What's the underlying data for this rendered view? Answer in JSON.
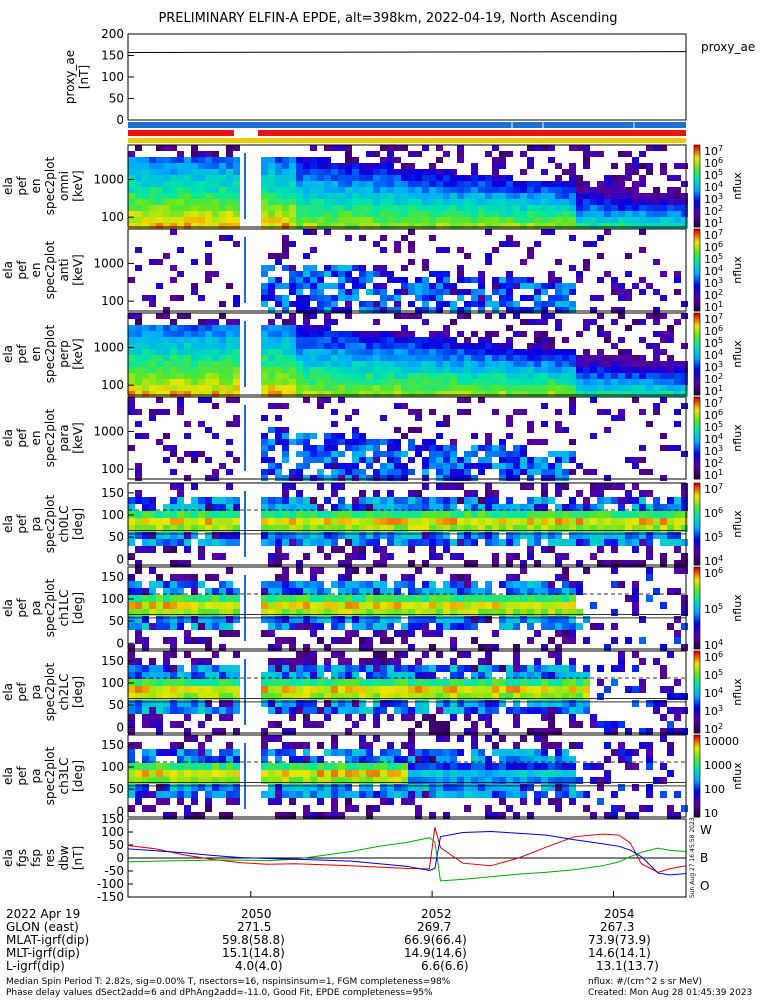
{
  "title": "PRELIMINARY ELFIN-A EPDE, alt=398km, 2022-04-19, North Ascending",
  "panels": [
    {
      "id": "ae",
      "ylabel": [
        "proxy_ae",
        "[nT]"
      ],
      "yticks": [
        "200",
        "150",
        "100",
        "50",
        "0"
      ],
      "side_label": "proxy_ae"
    },
    {
      "id": "s1",
      "ylabel": [
        "ela",
        "pef",
        "en",
        "spec2plot",
        "omni",
        "[keV]"
      ],
      "yticks": [
        "1000",
        "100"
      ],
      "cbar_label": "nflux",
      "cbar_ticks": [
        "10^7",
        "10^6",
        "10^5",
        "10^4",
        "10^3",
        "10^2",
        "10^1"
      ]
    },
    {
      "id": "s2",
      "ylabel": [
        "ela",
        "pef",
        "en",
        "spec2plot",
        "anti",
        "[keV]"
      ],
      "yticks": [
        "1000",
        "100"
      ],
      "cbar_label": "nflux",
      "cbar_ticks": [
        "10^7",
        "10^6",
        "10^5",
        "10^4",
        "10^3",
        "10^2",
        "10^1"
      ]
    },
    {
      "id": "s3",
      "ylabel": [
        "ela",
        "pef",
        "en",
        "spec2plot",
        "perp",
        "[keV]"
      ],
      "yticks": [
        "1000",
        "100"
      ],
      "cbar_label": "nflux",
      "cbar_ticks": [
        "10^7",
        "10^6",
        "10^5",
        "10^4",
        "10^3",
        "10^2",
        "10^1"
      ]
    },
    {
      "id": "s4",
      "ylabel": [
        "ela",
        "pef",
        "en",
        "spec2plot",
        "para",
        "[keV]"
      ],
      "yticks": [
        "1000",
        "100"
      ],
      "cbar_label": "nflux",
      "cbar_ticks": [
        "10^7",
        "10^6",
        "10^5",
        "10^4",
        "10^3",
        "10^2",
        "10^1"
      ]
    },
    {
      "id": "p0",
      "ylabel": [
        "ela",
        "pef",
        "pa",
        "spec2plot",
        "ch0LC",
        "[deg]"
      ],
      "yticks": [
        "150",
        "100",
        "50",
        "0"
      ],
      "cbar_label": "nflux",
      "cbar_ticks": [
        "10^7",
        "10^6",
        "10^5",
        "10^4"
      ]
    },
    {
      "id": "p1",
      "ylabel": [
        "ela",
        "pef",
        "pa",
        "spec2plot",
        "ch1LC",
        "[deg]"
      ],
      "yticks": [
        "150",
        "100",
        "50",
        "0"
      ],
      "cbar_label": "nflux",
      "cbar_ticks": [
        "10^6",
        "10^5",
        "10^4"
      ]
    },
    {
      "id": "p2",
      "ylabel": [
        "ela",
        "pef",
        "pa",
        "spec2plot",
        "ch2LC",
        "[deg]"
      ],
      "yticks": [
        "150",
        "100",
        "50",
        "0"
      ],
      "cbar_label": "nflux",
      "cbar_ticks": [
        "10^6",
        "10^5",
        "10^4",
        "10^3",
        "10^2"
      ]
    },
    {
      "id": "p3",
      "ylabel": [
        "ela",
        "pef",
        "pa",
        "spec2plot",
        "ch3LC",
        "[deg]"
      ],
      "yticks": [
        "150",
        "100",
        "50",
        "0"
      ],
      "cbar_label": "nflux",
      "cbar_ticks": [
        "10000",
        "1000",
        "100",
        "10"
      ]
    },
    {
      "id": "fgs",
      "ylabel": [
        "ela",
        "fgs",
        "fsp",
        "res",
        "dbw",
        "[nT]"
      ],
      "yticks": [
        "150",
        "100",
        "50",
        "0",
        "-50",
        "-100",
        "-150"
      ],
      "legend": [
        "W",
        "B",
        "O"
      ],
      "side_note": "Sun Aug 27 16:45:58 2023"
    }
  ],
  "chart_data": [
    {
      "type": "line",
      "title": "PRELIMINARY ELFIN-A EPDE, alt=398km, 2022-04-19, North Ascending",
      "ylabel": "proxy_ae [nT]",
      "ylim": [
        0,
        200
      ],
      "series": [
        {
          "name": "proxy_ae",
          "x": [
            0,
            1
          ],
          "values": [
            157,
            159
          ]
        }
      ]
    },
    {
      "type": "heatmap",
      "ylabel": "ela pef en spec2plot omni [keV]",
      "colorbar": "nflux",
      "ylog": true,
      "clim": [
        "10^1",
        "10^7"
      ]
    },
    {
      "type": "heatmap",
      "ylabel": "ela pef en spec2plot anti [keV]",
      "colorbar": "nflux",
      "ylog": true,
      "clim": [
        "10^1",
        "10^7"
      ]
    },
    {
      "type": "heatmap",
      "ylabel": "ela pef en spec2plot perp [keV]",
      "colorbar": "nflux",
      "ylog": true,
      "clim": [
        "10^1",
        "10^7"
      ]
    },
    {
      "type": "heatmap",
      "ylabel": "ela pef en spec2plot para [keV]",
      "colorbar": "nflux",
      "ylog": true,
      "clim": [
        "10^1",
        "10^7"
      ]
    },
    {
      "type": "heatmap",
      "ylabel": "ela pef pa spec2plot ch0LC [deg]",
      "colorbar": "nflux",
      "ylim": [
        0,
        180
      ]
    },
    {
      "type": "heatmap",
      "ylabel": "ela pef pa spec2plot ch1LC [deg]",
      "colorbar": "nflux",
      "ylim": [
        0,
        180
      ]
    },
    {
      "type": "heatmap",
      "ylabel": "ela pef pa spec2plot ch2LC [deg]",
      "colorbar": "nflux",
      "ylim": [
        0,
        180
      ]
    },
    {
      "type": "heatmap",
      "ylabel": "ela pef pa spec2plot ch3LC [deg]",
      "colorbar": "nflux",
      "ylim": [
        0,
        180
      ]
    },
    {
      "type": "line",
      "ylabel": "ela fgs fsp res dbw [nT]",
      "ylim": [
        -150,
        150
      ],
      "x_ticks": [
        "2050",
        "2052",
        "2054"
      ],
      "series": [
        {
          "name": "W",
          "color": "#dd0000",
          "x": [
            0,
            0.05,
            0.1,
            0.15,
            0.2,
            0.25,
            0.3,
            0.35,
            0.4,
            0.45,
            0.5,
            0.54,
            0.55,
            0.56,
            0.6,
            0.65,
            0.7,
            0.75,
            0.8,
            0.85,
            0.88,
            0.9,
            0.92,
            0.95,
            0.97,
            1.0
          ],
          "values": [
            48,
            35,
            12,
            -5,
            -18,
            -24,
            -22,
            -26,
            -30,
            -35,
            -40,
            -42,
            118,
            40,
            -20,
            -30,
            0,
            42,
            82,
            92,
            88,
            58,
            -22,
            -55,
            -42,
            -30
          ]
        },
        {
          "name": "B",
          "color": "#00aa00",
          "x": [
            0,
            0.05,
            0.1,
            0.15,
            0.2,
            0.25,
            0.3,
            0.35,
            0.4,
            0.45,
            0.5,
            0.54,
            0.55,
            0.56,
            0.6,
            0.65,
            0.7,
            0.75,
            0.8,
            0.85,
            0.88,
            0.9,
            0.92,
            0.95,
            0.97,
            1.0
          ],
          "values": [
            -15,
            -12,
            -10,
            -8,
            -8,
            -10,
            -5,
            10,
            25,
            45,
            60,
            78,
            62,
            -88,
            -82,
            -72,
            -62,
            -55,
            -45,
            -30,
            -15,
            5,
            22,
            38,
            30,
            25
          ]
        },
        {
          "name": "O",
          "color": "#0000cc",
          "x": [
            0,
            0.05,
            0.1,
            0.15,
            0.2,
            0.25,
            0.3,
            0.35,
            0.4,
            0.45,
            0.5,
            0.54,
            0.55,
            0.56,
            0.6,
            0.65,
            0.7,
            0.75,
            0.8,
            0.85,
            0.88,
            0.9,
            0.92,
            0.95,
            0.97,
            1.0
          ],
          "values": [
            35,
            28,
            20,
            10,
            2,
            -2,
            -5,
            -8,
            -12,
            -22,
            -32,
            -48,
            -40,
            82,
            98,
            102,
            95,
            88,
            70,
            55,
            45,
            30,
            5,
            -58,
            -65,
            -60
          ]
        }
      ]
    }
  ],
  "orbit_info": {
    "headers": [
      "2022 Apr 19",
      "2050",
      "2052",
      "2054"
    ],
    "rows": [
      {
        "label": "GLON (east)",
        "values": [
          "271.5",
          "269.7",
          "267.3"
        ]
      },
      {
        "label": "MLAT-igrf(dip)",
        "values": [
          "59.8(58.8)",
          "66.9(66.4)",
          "73.9(73.9)"
        ]
      },
      {
        "label": "MLT-igrf(dip)",
        "values": [
          "15.1(14.8)",
          "14.9(14.6)",
          "14.6(14.1)"
        ]
      },
      {
        "label": "L-igrf(dip)",
        "values": [
          "4.0(4.0)",
          "6.6(6.6)",
          "13.1(13.7)"
        ]
      }
    ]
  },
  "footer": {
    "line1": "Median Spin Period T: 2.82s, sig=0.00% T, nsectors=16, nspinsinsum=1, FGM completeness=98%",
    "line2": "Phase delay values dSect2add=6 and dPhAng2add=-11.0, Good Fit, EPDE completeness=95%",
    "units": "nflux: #/(cm^2 s sr MeV)",
    "created": "Created: Mon Aug 28 01:45:39 2023"
  },
  "colors": {
    "blue_bar": "#1a6fd6",
    "red_bar": "#ee1111",
    "yellow_bar": "#eecc00",
    "w": "#dd0000",
    "b": "#00aa00",
    "o": "#0000cc"
  }
}
